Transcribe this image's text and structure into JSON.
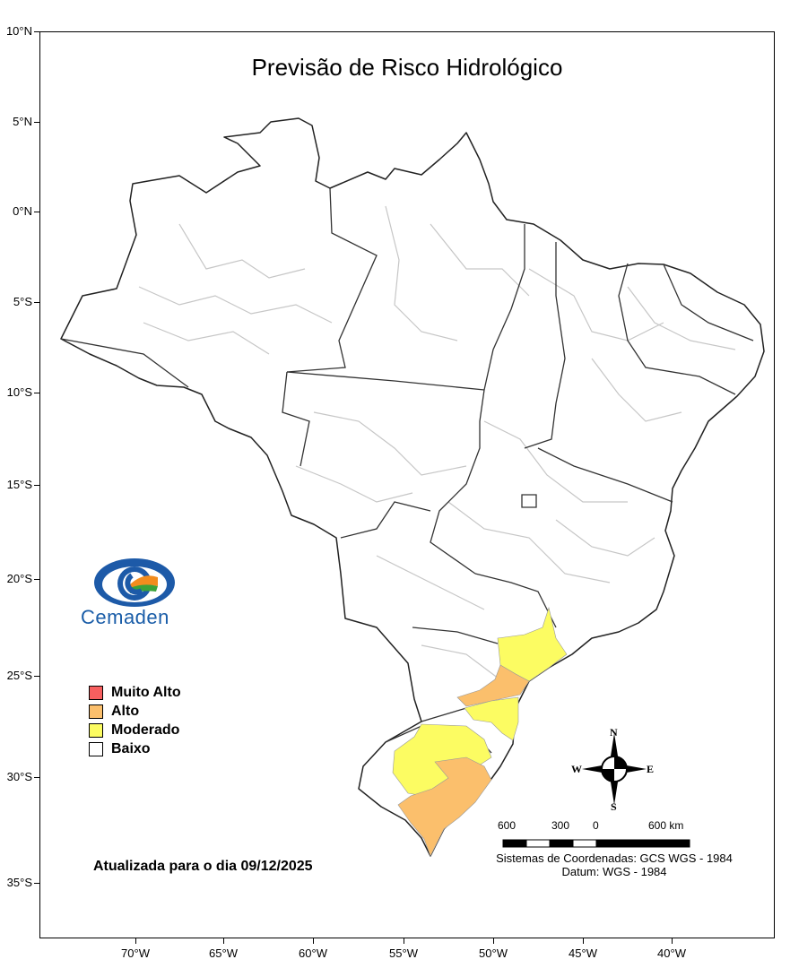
{
  "title": "Previsão de Risco Hidrológico",
  "axes": {
    "lat_labels": [
      "10°N",
      "5°N",
      "0°N",
      "5°S",
      "10°S",
      "15°S",
      "20°S",
      "25°S",
      "30°S",
      "35°S"
    ],
    "lon_labels": [
      "70°W",
      "65°W",
      "60°W",
      "55°W",
      "50°W",
      "45°W",
      "40°W"
    ]
  },
  "legend": {
    "items": [
      {
        "label": "Muito Alto",
        "color": "#f75f5f"
      },
      {
        "label": "Alto",
        "color": "#fbbf6c"
      },
      {
        "label": "Moderado",
        "color": "#fcfc62"
      },
      {
        "label": "Baixo",
        "color": "#ffffff"
      }
    ]
  },
  "update_text": "Atualizada para o dia 09/12/2025",
  "logo": {
    "name": "Cemaden"
  },
  "compass": {
    "n": "N",
    "s": "S",
    "e": "E",
    "w": "W"
  },
  "scale": {
    "labels": [
      "600",
      "300",
      "0",
      "600 km"
    ]
  },
  "coordinate_system": {
    "line1": "Sistemas de Coordenadas: GCS WGS - 1984",
    "line2": "Datum: WGS - 1984"
  },
  "risk_regions": [
    {
      "name": "litoral-sp-pr",
      "level": "Moderado"
    },
    {
      "name": "litoral-pr",
      "level": "Alto"
    },
    {
      "name": "litoral-sc",
      "level": "Moderado"
    },
    {
      "name": "norte-rs",
      "level": "Moderado"
    },
    {
      "name": "centro-sul-rs",
      "level": "Alto"
    }
  ]
}
